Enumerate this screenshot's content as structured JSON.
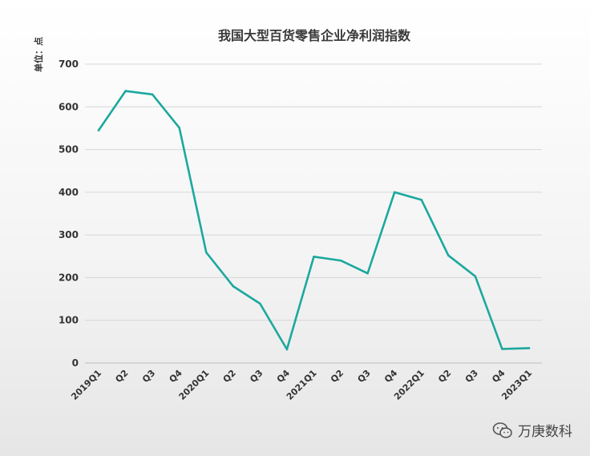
{
  "chart_data": {
    "type": "line",
    "title": "我国大型百货零售企业净利润指数",
    "unit_label": "单位：点",
    "xlabel": "",
    "ylabel": "",
    "ylim": [
      0,
      700
    ],
    "yticks": [
      0,
      100,
      200,
      300,
      400,
      500,
      600,
      700
    ],
    "grid": true,
    "legend": "none",
    "categories": [
      "2019Q1",
      "Q2",
      "Q3",
      "Q4",
      "2020Q1",
      "Q2",
      "Q3",
      "Q4",
      "2021Q1",
      "Q2",
      "Q3",
      "Q4",
      "2022Q1",
      "Q2",
      "Q3",
      "Q4",
      "2023Q1"
    ],
    "series": [
      {
        "values": [
          545,
          637,
          629,
          551,
          259,
          180,
          139,
          32,
          249,
          240,
          210,
          400,
          382,
          252,
          203,
          33,
          35
        ],
        "color": "#1ca89e"
      }
    ]
  },
  "watermark": {
    "text": "万庚数科",
    "icon": "wechat-icon"
  }
}
